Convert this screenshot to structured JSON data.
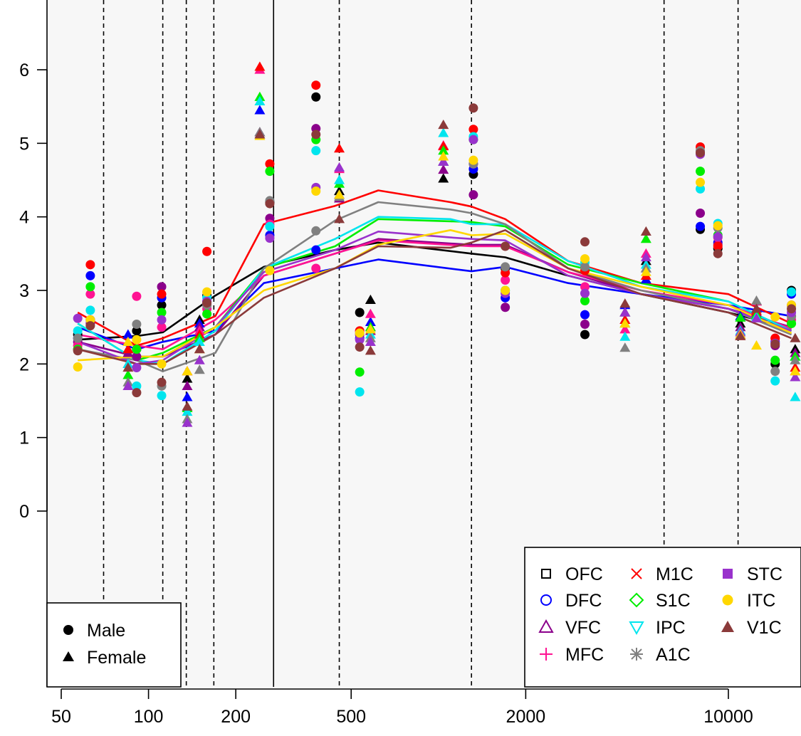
{
  "chart_data": {
    "type": "scatter",
    "title": "",
    "xlabel": "",
    "ylabel": "",
    "x_scale": "log",
    "xlim": [
      45,
      17500
    ],
    "ylim": [
      -2.4,
      6.85
    ],
    "x_ticks": [
      50,
      100,
      200,
      500,
      2000,
      10000
    ],
    "x_tick_labels": [
      "50",
      "100",
      "200",
      "500",
      "2000",
      "10000"
    ],
    "y_ticks": [
      0,
      1,
      2,
      3,
      4,
      5,
      6
    ],
    "y_tick_labels": [
      "0",
      "1",
      "2",
      "3",
      "4",
      "5",
      "6"
    ],
    "grid": false,
    "background": "#f7f7f7",
    "vertical_lines_dashed": [
      70,
      112,
      135,
      168,
      455,
      1300,
      6000,
      10800
    ],
    "vertical_line_solid": 270,
    "sample_ages": [
      57,
      63,
      85,
      91,
      111,
      136,
      150,
      159,
      242,
      262,
      378,
      455,
      535,
      583,
      1040,
      1170,
      1320,
      1700,
      3200,
      4400,
      5200,
      8000,
      9200,
      11000,
      12500,
      14500,
      16500,
      17000
    ],
    "series": [
      {
        "name": "OFC",
        "color": "#000000",
        "ages": [
          57,
          91,
          112,
          170,
          250,
          440,
          620,
          1300,
          1700,
          2800,
          5000,
          10000,
          16500
        ],
        "values": [
          2.33,
          2.38,
          2.43,
          2.93,
          3.32,
          3.55,
          3.65,
          3.5,
          3.45,
          3.2,
          2.95,
          2.7,
          2.48
        ]
      },
      {
        "name": "DFC",
        "color": "#0000ff",
        "ages": [
          57,
          91,
          112,
          170,
          250,
          440,
          620,
          1300,
          1700,
          2800,
          5000,
          10000,
          16500
        ],
        "values": [
          2.5,
          2.2,
          2.3,
          2.45,
          3.1,
          3.3,
          3.42,
          3.26,
          3.32,
          3.1,
          2.95,
          2.8,
          2.65
        ]
      },
      {
        "name": "VFC",
        "color": "#8b008b",
        "ages": [
          57,
          91,
          112,
          170,
          250,
          440,
          620,
          1300,
          1700,
          2800,
          5000,
          10000,
          16500
        ],
        "values": [
          2.3,
          2.1,
          2.1,
          2.4,
          3.2,
          3.5,
          3.7,
          3.62,
          3.62,
          3.25,
          2.95,
          2.75,
          2.5
        ]
      },
      {
        "name": "MFC",
        "color": "#ff1493",
        "ages": [
          57,
          91,
          112,
          170,
          250,
          440,
          620,
          1300,
          1700,
          2800,
          5000,
          10000,
          16500
        ],
        "values": [
          2.4,
          2.25,
          2.2,
          2.6,
          3.2,
          3.5,
          3.68,
          3.6,
          3.6,
          3.25,
          3.0,
          2.8,
          2.48
        ]
      },
      {
        "name": "M1C",
        "color": "#ff0000",
        "ages": [
          57,
          91,
          112,
          170,
          250,
          440,
          620,
          1100,
          1300,
          1700,
          2800,
          5000,
          10000,
          16500
        ],
        "values": [
          2.7,
          2.25,
          2.35,
          2.65,
          3.9,
          4.15,
          4.36,
          4.2,
          4.14,
          3.97,
          3.4,
          3.1,
          2.95,
          2.55
        ]
      },
      {
        "name": "S1C",
        "color": "#00ee00",
        "ages": [
          57,
          91,
          112,
          170,
          250,
          440,
          620,
          1100,
          1300,
          1700,
          2800,
          5000,
          10000,
          16500
        ],
        "values": [
          2.55,
          2.05,
          2.15,
          2.5,
          3.3,
          3.6,
          3.97,
          3.94,
          3.93,
          3.87,
          3.35,
          3.1,
          2.85,
          2.45
        ]
      },
      {
        "name": "IPC",
        "color": "#00e5ee",
        "ages": [
          57,
          91,
          112,
          170,
          250,
          440,
          620,
          1100,
          1300,
          1700,
          2800,
          5000,
          10000,
          16500
        ],
        "values": [
          2.55,
          2.05,
          2.0,
          2.45,
          3.3,
          3.7,
          4.0,
          3.97,
          3.9,
          3.9,
          3.4,
          3.05,
          2.85,
          2.45
        ]
      },
      {
        "name": "A1C",
        "color": "#808080",
        "ages": [
          57,
          91,
          112,
          170,
          250,
          440,
          620,
          1100,
          1300,
          1700,
          2800,
          5000,
          10000,
          16500
        ],
        "values": [
          2.2,
          2.05,
          1.9,
          2.15,
          3.3,
          3.95,
          4.2,
          4.1,
          4.05,
          3.9,
          3.3,
          3.0,
          2.75,
          2.4
        ]
      },
      {
        "name": "STC",
        "color": "#9932cc",
        "ages": [
          57,
          91,
          112,
          170,
          250,
          440,
          620,
          1100,
          1300,
          1700,
          2800,
          5000,
          10000,
          16500
        ],
        "values": [
          2.3,
          2.0,
          2.05,
          2.5,
          3.25,
          3.55,
          3.8,
          3.72,
          3.7,
          3.68,
          3.2,
          2.95,
          2.75,
          2.45
        ]
      },
      {
        "name": "ITC",
        "color": "#ffd700",
        "ages": [
          57,
          91,
          112,
          170,
          250,
          440,
          620,
          1100,
          1300,
          1700,
          2800,
          5000,
          10000,
          16500
        ],
        "values": [
          2.05,
          2.1,
          2.1,
          2.5,
          3.0,
          3.3,
          3.62,
          3.82,
          3.75,
          3.77,
          3.3,
          3.05,
          2.8,
          2.42
        ]
      },
      {
        "name": "V1C",
        "color": "#8b3a3a",
        "ages": [
          57,
          91,
          112,
          170,
          250,
          440,
          620,
          1100,
          1300,
          1700,
          2800,
          5000,
          10000,
          16500
        ],
        "values": [
          2.2,
          2.0,
          2.0,
          2.4,
          2.9,
          3.3,
          3.6,
          3.58,
          3.65,
          3.82,
          3.3,
          2.95,
          2.7,
          2.35
        ]
      }
    ],
    "legend_sex": {
      "placement": "bottom-left",
      "entries": [
        {
          "label": "Male",
          "shape": "circle"
        },
        {
          "label": "Female",
          "shape": "triangle"
        }
      ]
    },
    "legend_regions": {
      "placement": "bottom-right",
      "entries": [
        {
          "label": "OFC",
          "color": "#000000",
          "symbol": "square-open"
        },
        {
          "label": "DFC",
          "color": "#0000ff",
          "symbol": "circle-open"
        },
        {
          "label": "VFC",
          "color": "#8b008b",
          "symbol": "triangle-open"
        },
        {
          "label": "MFC",
          "color": "#ff1493",
          "symbol": "plus"
        },
        {
          "label": "M1C",
          "color": "#ff0000",
          "symbol": "cross"
        },
        {
          "label": "S1C",
          "color": "#00ee00",
          "symbol": "diamond-open"
        },
        {
          "label": "IPC",
          "color": "#00e5ee",
          "symbol": "triangle-down-open"
        },
        {
          "label": "A1C",
          "color": "#808080",
          "symbol": "asterisk"
        },
        {
          "label": "STC",
          "color": "#9932cc",
          "symbol": "square-filled"
        },
        {
          "label": "ITC",
          "color": "#ffd700",
          "symbol": "circle-filled"
        },
        {
          "label": "V1C",
          "color": "#8b3a3a",
          "symbol": "triangle-filled"
        }
      ]
    },
    "sample_values": {
      "57": {
        "sex": "M",
        "values": [
          2.4,
          2.35,
          2.3,
          2.25,
          2.2,
          2.2,
          2.45,
          2.35,
          2.62,
          1.96,
          2.18
        ]
      },
      "63": {
        "sex": "M",
        "values": [
          2.6,
          3.2,
          2.55,
          2.95,
          3.35,
          3.05,
          2.73,
          2.6,
          2.6,
          2.6,
          2.52
        ]
      },
      "85": {
        "sex": "F",
        "values": [
          2.2,
          2.4,
          2.15,
          2.0,
          2.2,
          1.85,
          2.0,
          1.75,
          1.7,
          2.3,
          1.95
        ]
      },
      "91": {
        "sex": "M",
        "values": [
          2.45,
          2.2,
          2.1,
          2.92,
          2.2,
          2.2,
          1.7,
          2.54,
          1.95,
          2.33,
          1.61
        ]
      },
      "111": {
        "sex": "M",
        "values": [
          2.8,
          2.9,
          3.05,
          2.5,
          2.95,
          2.7,
          1.57,
          1.7,
          2.6,
          2.0,
          1.75
        ]
      },
      "136": {
        "sex": "F",
        "values": [
          1.8,
          1.55,
          1.7,
          1.4,
          1.9,
          1.4,
          1.35,
          1.25,
          1.2,
          1.9,
          1.42
        ]
      },
      "150": {
        "sex": "F",
        "values": [
          2.6,
          2.55,
          2.5,
          2.45,
          2.4,
          2.35,
          2.3,
          1.92,
          2.05,
          2.2,
          2.2
        ]
      },
      "159": {
        "sex": "M",
        "values": [
          2.93,
          2.85,
          2.8,
          2.75,
          3.53,
          2.68,
          2.9,
          2.8,
          2.85,
          2.98,
          2.83
        ]
      },
      "242": {
        "sex": "F",
        "values": [
          5.15,
          5.45,
          5.15,
          6.0,
          6.04,
          5.63,
          5.57,
          5.15,
          5.12,
          5.1,
          5.12
        ]
      },
      "262": {
        "sex": "M",
        "values": [
          4.2,
          3.75,
          3.98,
          3.9,
          4.72,
          4.62,
          3.87,
          4.22,
          3.71,
          3.27,
          4.18
        ]
      },
      "378": {
        "sex": "M",
        "values": [
          5.63,
          3.55,
          5.2,
          3.3,
          5.79,
          5.05,
          4.9,
          3.81,
          4.4,
          4.35,
          5.12
        ]
      },
      "455": {
        "sex": "F",
        "values": [
          4.35,
          4.3,
          4.25,
          4.65,
          4.93,
          4.45,
          4.5,
          4.27,
          4.67,
          4.3,
          3.97
        ]
      },
      "535": {
        "sex": "M",
        "values": [
          2.7,
          2.35,
          2.4,
          2.45,
          2.45,
          1.89,
          1.62,
          2.42,
          2.33,
          2.42,
          2.23
        ]
      },
      "583": {
        "sex": "F",
        "values": [
          2.87,
          2.57,
          2.45,
          2.68,
          2.5,
          2.5,
          2.4,
          2.35,
          2.3,
          2.47,
          2.18
        ]
      },
      "1040": {
        "sex": "F",
        "values": [
          4.52,
          4.75,
          4.64,
          4.97,
          4.96,
          4.9,
          5.14,
          4.75,
          4.75,
          4.82,
          5.25
        ]
      },
      "1320": {
        "sex": "M",
        "values": [
          4.58,
          4.65,
          4.3,
          4.72,
          5.19,
          5.05,
          5.09,
          4.72,
          5.05,
          4.77,
          5.48
        ]
      },
      "1700": {
        "sex": "M",
        "values": [
          3.3,
          2.9,
          2.77,
          3.14,
          3.24,
          3.0,
          3.0,
          3.32,
          2.96,
          3.0,
          3.6
        ]
      },
      "3200": {
        "sex": "M",
        "values": [
          2.4,
          2.67,
          2.54,
          3.05,
          3.27,
          2.86,
          3.38,
          3.32,
          2.96,
          3.43,
          3.66
        ]
      },
      "4400": {
        "sex": "F",
        "values": [
          2.7,
          2.8,
          2.6,
          2.47,
          2.6,
          2.55,
          2.37,
          2.22,
          2.7,
          2.55,
          2.82
        ]
      },
      "5200": {
        "sex": "F",
        "values": [
          3.4,
          3.15,
          3.3,
          3.5,
          3.2,
          3.7,
          3.35,
          3.3,
          3.45,
          3.25,
          3.8
        ]
      },
      "8000": {
        "sex": "M",
        "values": [
          3.83,
          3.87,
          4.05,
          4.88,
          4.95,
          4.62,
          4.38,
          4.9,
          4.85,
          4.47,
          4.87
        ]
      },
      "9200": {
        "sex": "M",
        "values": [
          3.57,
          3.65,
          3.62,
          3.72,
          3.6,
          3.75,
          3.91,
          3.85,
          3.73,
          3.88,
          3.5
        ]
      },
      "11000": {
        "sex": "F",
        "values": [
          2.55,
          2.65,
          2.5,
          2.4,
          2.38,
          2.63,
          2.45,
          2.4,
          2.43,
          2.4,
          2.38
        ]
      },
      "12500": {
        "sex": "F",
        "values": [
          2.85,
          2.75,
          2.7,
          2.85,
          2.72,
          2.67,
          2.64,
          2.86,
          2.62,
          2.25,
          2.75
        ]
      },
      "14500": {
        "sex": "M",
        "values": [
          2.0,
          2.3,
          2.25,
          2.35,
          2.35,
          2.05,
          1.77,
          1.9,
          2.28,
          2.64,
          2.27
        ]
      },
      "16500": {
        "sex": "M",
        "values": [
          3.0,
          2.95,
          2.8,
          2.6,
          2.65,
          2.55,
          2.98,
          2.65,
          2.7,
          2.8,
          2.75
        ]
      },
      "17000": {
        "sex": "F",
        "values": [
          2.2,
          2.1,
          2.15,
          1.9,
          1.95,
          2.1,
          1.55,
          2.05,
          1.82,
          1.9,
          2.35
        ]
      }
    }
  }
}
